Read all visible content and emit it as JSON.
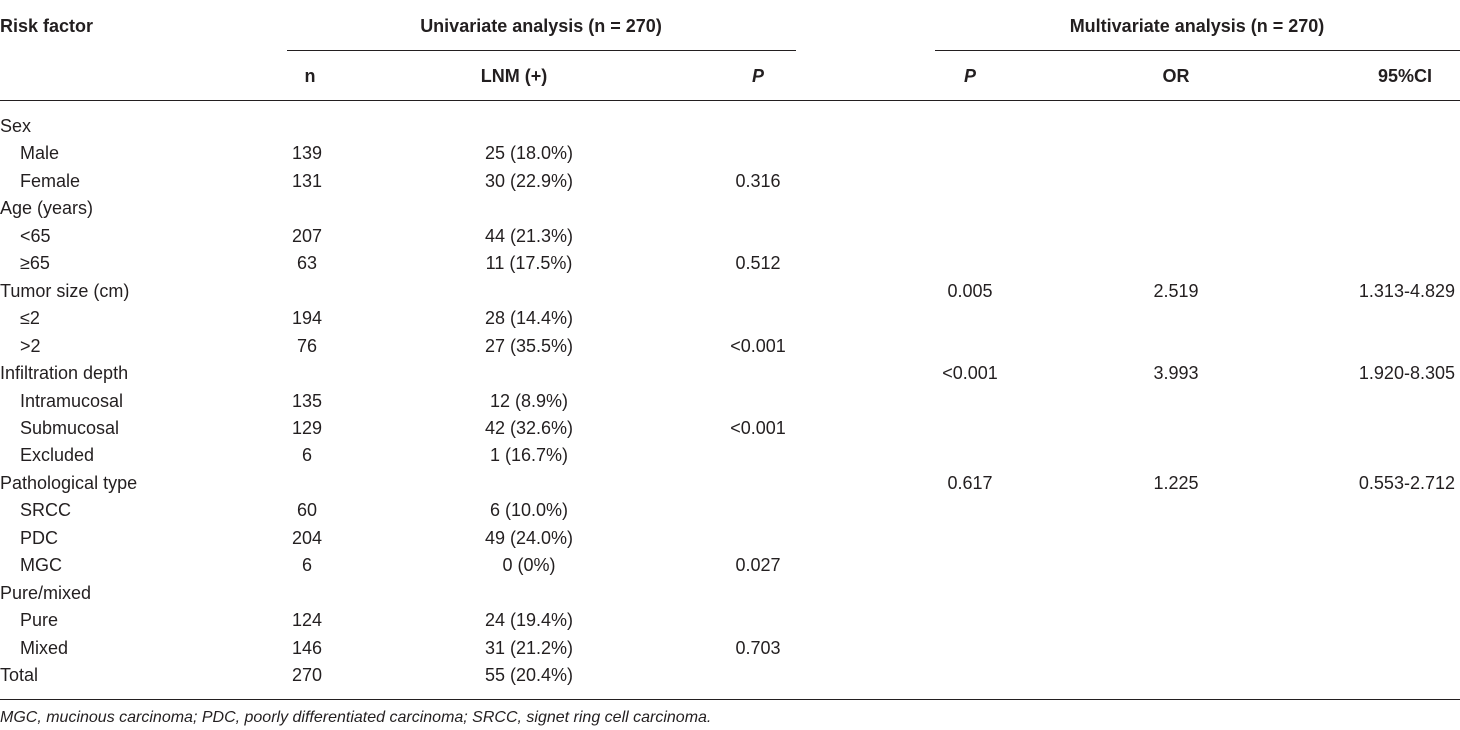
{
  "header": {
    "risk_factor": "Risk factor",
    "univariate": "Univariate analysis (n = 270)",
    "multivariate": "Multivariate analysis (n = 270)",
    "col_n": "n",
    "col_lnm": "LNM (+)",
    "col_p_uni": "P",
    "col_p_multi": "P",
    "col_or": "OR",
    "col_ci": "95%CI"
  },
  "rows": [
    {
      "label": "Sex",
      "indent": false,
      "n": "",
      "lnm": "",
      "p": "",
      "mp": "",
      "or": "",
      "ci": ""
    },
    {
      "label": "Male",
      "indent": true,
      "n": "139",
      "lnm": "25 (18.0%)",
      "p": "",
      "mp": "",
      "or": "",
      "ci": ""
    },
    {
      "label": "Female",
      "indent": true,
      "n": "131",
      "lnm": "30 (22.9%)",
      "p": "0.316",
      "mp": "",
      "or": "",
      "ci": ""
    },
    {
      "label": "Age (years)",
      "indent": false,
      "n": "",
      "lnm": "",
      "p": "",
      "mp": "",
      "or": "",
      "ci": ""
    },
    {
      "label": "<65",
      "indent": true,
      "n": "207",
      "lnm": "44 (21.3%)",
      "p": "",
      "mp": "",
      "or": "",
      "ci": ""
    },
    {
      "label": "≥65",
      "indent": true,
      "n": "63",
      "lnm": "11 (17.5%)",
      "p": "0.512",
      "mp": "",
      "or": "",
      "ci": ""
    },
    {
      "label": "Tumor size (cm)",
      "indent": false,
      "n": "",
      "lnm": "",
      "p": "",
      "mp": "0.005",
      "or": "2.519",
      "ci": "1.313-4.829"
    },
    {
      "label": "≤2",
      "indent": true,
      "n": "194",
      "lnm": "28 (14.4%)",
      "p": "",
      "mp": "",
      "or": "",
      "ci": ""
    },
    {
      "label": ">2",
      "indent": true,
      "n": "76",
      "lnm": "27 (35.5%)",
      "p": "<0.001",
      "mp": "",
      "or": "",
      "ci": ""
    },
    {
      "label": "Infiltration depth",
      "indent": false,
      "n": "",
      "lnm": "",
      "p": "",
      "mp": "<0.001",
      "or": "3.993",
      "ci": "1.920-8.305"
    },
    {
      "label": "Intramucosal",
      "indent": true,
      "n": "135",
      "lnm": "12 (8.9%)",
      "p": "",
      "mp": "",
      "or": "",
      "ci": ""
    },
    {
      "label": "Submucosal",
      "indent": true,
      "n": "129",
      "lnm": "42 (32.6%)",
      "p": "<0.001",
      "mp": "",
      "or": "",
      "ci": ""
    },
    {
      "label": "Excluded",
      "indent": true,
      "n": "6",
      "lnm": "1 (16.7%)",
      "p": "",
      "mp": "",
      "or": "",
      "ci": ""
    },
    {
      "label": "Pathological type",
      "indent": false,
      "n": "",
      "lnm": "",
      "p": "",
      "mp": "0.617",
      "or": "1.225",
      "ci": "0.553-2.712"
    },
    {
      "label": "SRCC",
      "indent": true,
      "n": "60",
      "lnm": "6 (10.0%)",
      "p": "",
      "mp": "",
      "or": "",
      "ci": ""
    },
    {
      "label": "PDC",
      "indent": true,
      "n": "204",
      "lnm": "49 (24.0%)",
      "p": "",
      "mp": "",
      "or": "",
      "ci": ""
    },
    {
      "label": "MGC",
      "indent": true,
      "n": "6",
      "lnm": "0 (0%)",
      "p": "0.027",
      "mp": "",
      "or": "",
      "ci": ""
    },
    {
      "label": "Pure/mixed",
      "indent": false,
      "n": "",
      "lnm": "",
      "p": "",
      "mp": "",
      "or": "",
      "ci": ""
    },
    {
      "label": "Pure",
      "indent": true,
      "n": "124",
      "lnm": "24 (19.4%)",
      "p": "",
      "mp": "",
      "or": "",
      "ci": ""
    },
    {
      "label": "Mixed",
      "indent": true,
      "n": "146",
      "lnm": "31 (21.2%)",
      "p": "0.703",
      "mp": "",
      "or": "",
      "ci": ""
    },
    {
      "label": "Total",
      "indent": false,
      "n": "270",
      "lnm": "55 (20.4%)",
      "p": "",
      "mp": "",
      "or": "",
      "ci": ""
    }
  ],
  "footnote": "MGC, mucinous carcinoma; PDC, poorly differentiated carcinoma; SRCC, signet ring cell carcinoma."
}
